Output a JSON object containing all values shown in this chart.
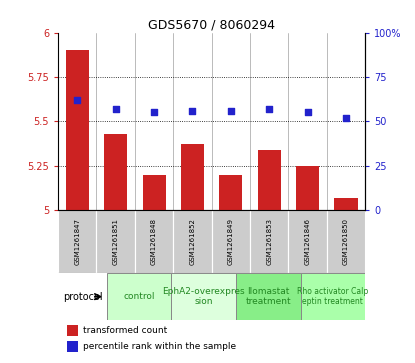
{
  "title": "GDS5670 / 8060294",
  "samples": [
    "GSM1261847",
    "GSM1261851",
    "GSM1261848",
    "GSM1261852",
    "GSM1261849",
    "GSM1261853",
    "GSM1261846",
    "GSM1261850"
  ],
  "bar_values": [
    5.9,
    5.43,
    5.2,
    5.37,
    5.2,
    5.34,
    5.25,
    5.07
  ],
  "dot_values": [
    62,
    57,
    55,
    56,
    56,
    57,
    55,
    52
  ],
  "ylim_left": [
    5.0,
    6.0
  ],
  "ylim_right": [
    0,
    100
  ],
  "yticks_left": [
    5.0,
    5.25,
    5.5,
    5.75,
    6.0
  ],
  "yticks_right": [
    0,
    25,
    50,
    75,
    100
  ],
  "ytick_labels_left": [
    "5",
    "5.25",
    "5.5",
    "5.75",
    "6"
  ],
  "ytick_labels_right": [
    "0",
    "25",
    "50",
    "75",
    "100%"
  ],
  "bar_color": "#cc2222",
  "dot_color": "#2222cc",
  "protocols": [
    {
      "label": "control",
      "samples": [
        0,
        1
      ],
      "color": "#ccffcc"
    },
    {
      "label": "EphA2-overexpres\nsion",
      "samples": [
        2,
        3
      ],
      "color": "#ddffdd"
    },
    {
      "label": "Ilomastat\ntreatment",
      "samples": [
        4,
        5
      ],
      "color": "#88ee88"
    },
    {
      "label": "Rho activator Calp\neptin treatment",
      "samples": [
        6,
        7
      ],
      "color": "#aaffaa"
    }
  ],
  "protocol_label": "protocol",
  "legend_bar": "transformed count",
  "legend_dot": "percentile rank within the sample",
  "background_color": "#ffffff",
  "sample_bg": "#cccccc",
  "grid_color": "#000000",
  "sep_color": "#888888"
}
